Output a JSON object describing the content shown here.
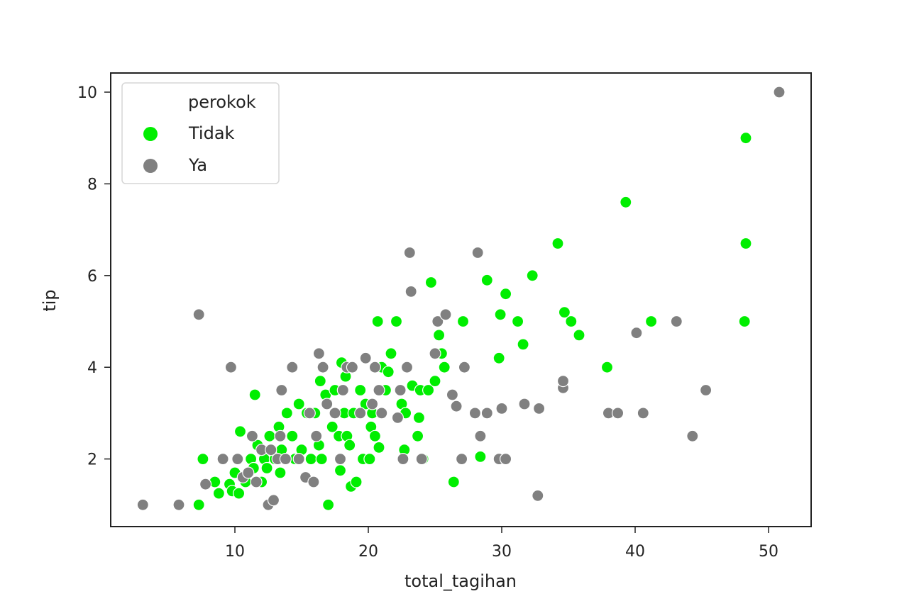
{
  "chart_data": {
    "type": "scatter",
    "title": "",
    "xlabel": "total_tagihan",
    "ylabel": "tip",
    "xlim": [
      1.5,
      53.3
    ],
    "ylim": [
      0.6,
      10.45
    ],
    "xticks": [
      10,
      20,
      30,
      40,
      50
    ],
    "yticks": [
      2,
      4,
      6,
      8,
      10
    ],
    "grid": false,
    "legend": {
      "title": "perokok",
      "position": "upper left",
      "entries": [
        {
          "label": "Tidak",
          "color": "#00ee00"
        },
        {
          "label": "Ya",
          "color": "#808080"
        }
      ]
    },
    "series": [
      {
        "name": "Tidak",
        "color": "#00ee00",
        "points": [
          [
            7.3,
            1.0
          ],
          [
            7.6,
            2.0
          ],
          [
            8.5,
            1.5
          ],
          [
            8.8,
            1.25
          ],
          [
            9.6,
            1.45
          ],
          [
            9.8,
            1.3
          ],
          [
            10.0,
            1.7
          ],
          [
            10.3,
            1.25
          ],
          [
            10.4,
            2.6
          ],
          [
            10.8,
            1.5
          ],
          [
            11.2,
            2.0
          ],
          [
            11.4,
            1.8
          ],
          [
            11.5,
            3.4
          ],
          [
            11.7,
            2.3
          ],
          [
            12.0,
            1.5
          ],
          [
            12.2,
            2.0
          ],
          [
            12.4,
            1.8
          ],
          [
            12.6,
            2.5
          ],
          [
            13.0,
            2.0
          ],
          [
            13.3,
            2.7
          ],
          [
            13.4,
            1.7
          ],
          [
            13.5,
            2.2
          ],
          [
            13.9,
            3.0
          ],
          [
            14.3,
            2.5
          ],
          [
            14.5,
            2.0
          ],
          [
            14.8,
            3.2
          ],
          [
            15.0,
            2.2
          ],
          [
            15.4,
            3.0
          ],
          [
            15.7,
            2.0
          ],
          [
            16.0,
            3.0
          ],
          [
            16.3,
            2.3
          ],
          [
            16.4,
            3.7
          ],
          [
            16.5,
            2.0
          ],
          [
            16.8,
            3.4
          ],
          [
            17.0,
            1.0
          ],
          [
            17.3,
            2.7
          ],
          [
            17.5,
            3.5
          ],
          [
            17.8,
            2.5
          ],
          [
            17.9,
            1.75
          ],
          [
            18.0,
            4.1
          ],
          [
            18.2,
            3.0
          ],
          [
            18.3,
            3.8
          ],
          [
            18.4,
            2.5
          ],
          [
            18.6,
            2.3
          ],
          [
            18.7,
            1.4
          ],
          [
            18.9,
            3.0
          ],
          [
            19.1,
            1.5
          ],
          [
            19.4,
            3.5
          ],
          [
            19.6,
            2.0
          ],
          [
            19.8,
            3.2
          ],
          [
            20.1,
            2.0
          ],
          [
            20.2,
            2.7
          ],
          [
            20.3,
            3.0
          ],
          [
            20.5,
            2.5
          ],
          [
            20.7,
            5.0
          ],
          [
            20.8,
            2.25
          ],
          [
            21.0,
            4.0
          ],
          [
            21.3,
            3.5
          ],
          [
            21.5,
            3.9
          ],
          [
            21.7,
            4.3
          ],
          [
            22.1,
            5.0
          ],
          [
            22.5,
            3.2
          ],
          [
            22.7,
            2.2
          ],
          [
            22.8,
            3.0
          ],
          [
            23.3,
            3.6
          ],
          [
            23.7,
            2.5
          ],
          [
            23.8,
            2.9
          ],
          [
            23.9,
            3.5
          ],
          [
            24.1,
            2.0
          ],
          [
            24.5,
            3.5
          ],
          [
            24.7,
            5.85
          ],
          [
            25.0,
            3.7
          ],
          [
            25.3,
            4.7
          ],
          [
            25.5,
            4.3
          ],
          [
            25.7,
            4.0
          ],
          [
            26.4,
            1.5
          ],
          [
            27.1,
            5.0
          ],
          [
            28.4,
            2.05
          ],
          [
            28.9,
            5.9
          ],
          [
            29.8,
            4.2
          ],
          [
            29.9,
            5.15
          ],
          [
            30.3,
            5.6
          ],
          [
            31.2,
            5.0
          ],
          [
            31.6,
            4.5
          ],
          [
            32.3,
            6.0
          ],
          [
            34.2,
            6.7
          ],
          [
            34.7,
            5.2
          ],
          [
            35.2,
            5.0
          ],
          [
            35.8,
            4.7
          ],
          [
            37.9,
            4.0
          ],
          [
            39.3,
            7.6
          ],
          [
            41.2,
            5.0
          ],
          [
            48.2,
            5.0
          ],
          [
            48.3,
            6.7
          ],
          [
            48.3,
            9.0
          ]
        ]
      },
      {
        "name": "Ya",
        "color": "#808080",
        "points": [
          [
            3.1,
            1.0
          ],
          [
            5.8,
            1.0
          ],
          [
            7.3,
            5.15
          ],
          [
            7.8,
            1.45
          ],
          [
            9.1,
            2.0
          ],
          [
            9.7,
            4.0
          ],
          [
            10.2,
            2.0
          ],
          [
            10.6,
            1.6
          ],
          [
            11.0,
            1.7
          ],
          [
            11.3,
            2.5
          ],
          [
            11.6,
            1.5
          ],
          [
            12.0,
            2.2
          ],
          [
            12.5,
            1.0
          ],
          [
            12.7,
            2.2
          ],
          [
            12.9,
            1.1
          ],
          [
            13.2,
            2.0
          ],
          [
            13.4,
            2.5
          ],
          [
            13.5,
            3.5
          ],
          [
            13.8,
            2.0
          ],
          [
            14.3,
            4.0
          ],
          [
            14.8,
            2.0
          ],
          [
            15.3,
            1.6
          ],
          [
            15.6,
            3.0
          ],
          [
            15.9,
            1.5
          ],
          [
            16.1,
            2.5
          ],
          [
            16.3,
            4.3
          ],
          [
            16.6,
            4.0
          ],
          [
            16.9,
            3.2
          ],
          [
            17.5,
            3.0
          ],
          [
            17.9,
            2.0
          ],
          [
            18.1,
            3.5
          ],
          [
            18.4,
            4.0
          ],
          [
            18.8,
            4.0
          ],
          [
            19.4,
            3.0
          ],
          [
            19.8,
            4.2
          ],
          [
            20.3,
            3.2
          ],
          [
            20.5,
            4.0
          ],
          [
            20.8,
            3.5
          ],
          [
            21.0,
            3.0
          ],
          [
            22.2,
            2.9
          ],
          [
            22.4,
            3.5
          ],
          [
            22.6,
            2.0
          ],
          [
            22.9,
            4.0
          ],
          [
            23.1,
            6.5
          ],
          [
            23.2,
            5.65
          ],
          [
            24.0,
            2.0
          ],
          [
            25.0,
            4.3
          ],
          [
            25.2,
            5.0
          ],
          [
            25.8,
            5.15
          ],
          [
            26.3,
            3.4
          ],
          [
            26.6,
            3.15
          ],
          [
            27.0,
            2.0
          ],
          [
            27.2,
            4.0
          ],
          [
            28.0,
            3.0
          ],
          [
            28.2,
            6.5
          ],
          [
            28.4,
            2.5
          ],
          [
            28.9,
            3.0
          ],
          [
            29.8,
            2.0
          ],
          [
            30.0,
            3.1
          ],
          [
            30.3,
            2.0
          ],
          [
            31.7,
            3.2
          ],
          [
            32.7,
            1.2
          ],
          [
            32.8,
            3.1
          ],
          [
            34.6,
            3.55
          ],
          [
            34.6,
            3.7
          ],
          [
            38.0,
            3.0
          ],
          [
            38.7,
            3.0
          ],
          [
            40.1,
            4.75
          ],
          [
            40.6,
            3.0
          ],
          [
            43.1,
            5.0
          ],
          [
            44.3,
            2.5
          ],
          [
            45.3,
            3.5
          ],
          [
            50.8,
            10.0
          ]
        ]
      }
    ]
  }
}
